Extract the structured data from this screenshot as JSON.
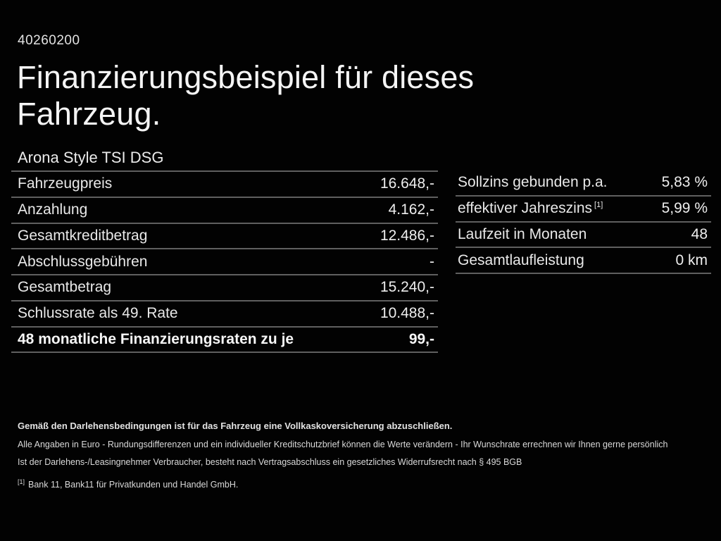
{
  "page": {
    "ref_number": "40260200",
    "title_line1": "Finanzierungsbeispiel für dieses",
    "title_line2": "Fahrzeug.",
    "subtitle": "Arona Style TSI DSG"
  },
  "left_table": {
    "rows": [
      {
        "label": "Fahrzeugpreis",
        "value": "16.648,-"
      },
      {
        "label": "Anzahlung",
        "value": "4.162,-"
      },
      {
        "label": "Gesamtkreditbetrag",
        "value": "12.486,-"
      },
      {
        "label": "Abschlussgebühren",
        "value": "-"
      },
      {
        "label": "Gesamtbetrag",
        "value": "15.240,-"
      },
      {
        "label": "Schlussrate als 49. Rate",
        "value": "10.488,-"
      },
      {
        "label": "48 monatliche Finanzierungsraten zu je",
        "value": "99,-"
      }
    ]
  },
  "right_table": {
    "rows": [
      {
        "label": "Sollzins gebunden p.a.",
        "value": "5,83 %"
      },
      {
        "label": "effektiver Jahreszins",
        "sup": "[1]",
        "value": "5,99 %"
      },
      {
        "label": "Laufzeit in Monaten",
        "value": "48"
      },
      {
        "label": "Gesamtlaufleistung",
        "value": "0 km"
      }
    ]
  },
  "footer": {
    "line1": "Gemäß den Darlehensbedingungen ist für das Fahrzeug eine Vollkaskoversicherung abzuschließen.",
    "line2": "Alle Angaben in Euro - Rundungsdifferenzen und ein individueller Kreditschutzbrief können die Werte verändern - Ihr Wunschrate errechnen wir Ihnen gerne persönlich",
    "line3": "Ist der Darlehens-/Leasingnehmer Verbraucher, besteht nach Vertragsabschluss ein gesetzliches Widerrufsrecht nach § 495 BGB",
    "footnote_marker": "[1]",
    "footnote_text": "Bank 11, Bank11 für Privatkunden und Handel GmbH."
  },
  "colors": {
    "background": "#020202",
    "text": "#ececec",
    "divider": "#5f5f5f"
  }
}
